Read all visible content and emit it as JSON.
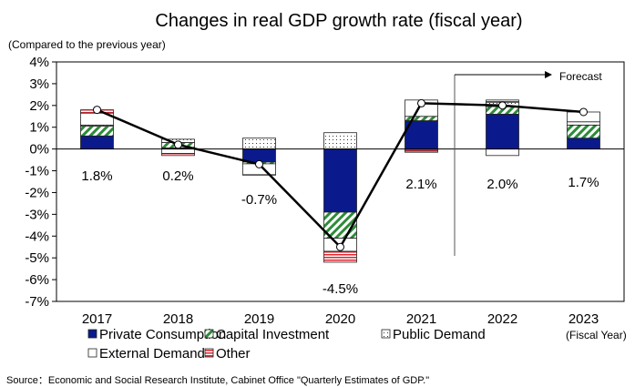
{
  "chart_data": {
    "type": "bar",
    "subtype": "stacked-bar-with-line",
    "title": "Changes in real GDP growth rate (fiscal year)",
    "ylabel": "(Compared to the previous year)",
    "xlabel": "(Fiscal Year)",
    "ylim": [
      -7,
      4
    ],
    "yticks": [
      "4%",
      "3%",
      "2%",
      "1%",
      "0%",
      "-1%",
      "-2%",
      "-3%",
      "-4%",
      "-5%",
      "-6%",
      "-7%"
    ],
    "categories": [
      "2017",
      "2018",
      "2019",
      "2020",
      "2021",
      "2022",
      "2023"
    ],
    "series": [
      {
        "name": "Private Consumption",
        "key": "pc",
        "color": "#0a1a8c",
        "values": [
          0.6,
          0.05,
          -0.6,
          -2.9,
          1.3,
          1.6,
          0.5
        ]
      },
      {
        "name": "Capital Investment",
        "key": "ci",
        "color": "#2e8b3a",
        "values": [
          0.45,
          0.25,
          -0.08,
          -1.2,
          0.2,
          0.35,
          0.6
        ]
      },
      {
        "name": "Public Demand",
        "key": "pd",
        "color": "#000000",
        "values": [
          0.05,
          0.15,
          0.5,
          0.75,
          -0.05,
          0.2,
          0.15
        ]
      },
      {
        "name": "External Demand",
        "key": "ed",
        "color": "#000000",
        "values": [
          0.55,
          -0.2,
          -0.5,
          -0.6,
          0.75,
          -0.3,
          0.45
        ]
      },
      {
        "name": "Other",
        "key": "ot",
        "color": "#e0242d",
        "values": [
          0.15,
          -0.1,
          -0.02,
          -0.5,
          -0.1,
          0.1,
          0.0
        ]
      }
    ],
    "total": {
      "name": "Real GDP growth",
      "values": [
        1.8,
        0.2,
        -0.7,
        -4.5,
        2.1,
        2.0,
        1.7
      ]
    },
    "data_labels": [
      "1.8%",
      "0.2%",
      "-0.7%",
      "-4.5%",
      "2.1%",
      "2.0%",
      "1.7%"
    ],
    "forecast": {
      "label": "Forecast",
      "from_category": "2022"
    },
    "legend": [
      {
        "label": "Private Consumption",
        "key": "pc"
      },
      {
        "label": "Capital Investment",
        "key": "ci"
      },
      {
        "label": "Public Demand",
        "key": "pd"
      },
      {
        "label": "External Demand",
        "key": "ed"
      },
      {
        "label": "Other",
        "key": "ot"
      }
    ],
    "legend_placement": "bottom",
    "grid": false
  },
  "source": "Source：Economic and Social Research Institute, Cabinet Office \"Quarterly Estimates of GDP.\""
}
